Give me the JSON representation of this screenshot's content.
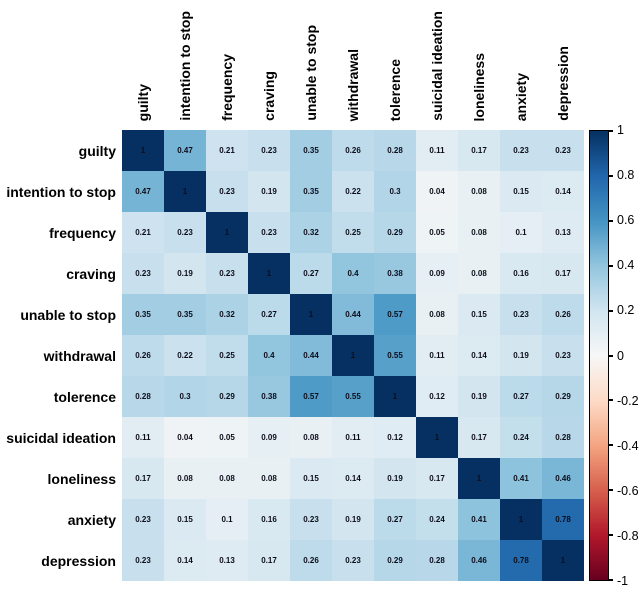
{
  "figure": {
    "type": "correlation-heatmap",
    "background": "#ffffff",
    "label_color": "#000000",
    "cell_text_color": "#0d0d1a"
  },
  "chart_data": {
    "type": "heatmap",
    "title": "",
    "xlabel": "",
    "ylabel": "",
    "legend_position": "right-colorbar",
    "grid": false,
    "variables": [
      "guilty",
      "intention to stop",
      "frequency",
      "craving",
      "unable to stop",
      "withdrawal",
      "tolerence",
      "suicidal ideation",
      "loneliness",
      "anxiety",
      "depression"
    ],
    "matrix": [
      [
        1,
        0.47,
        0.21,
        0.23,
        0.35,
        0.26,
        0.28,
        0.11,
        0.17,
        0.23,
        0.23
      ],
      [
        0.47,
        1,
        0.23,
        0.19,
        0.35,
        0.22,
        0.3,
        0.04,
        0.08,
        0.15,
        0.14
      ],
      [
        0.21,
        0.23,
        1,
        0.23,
        0.32,
        0.25,
        0.29,
        0.05,
        0.08,
        0.1,
        0.13
      ],
      [
        0.23,
        0.19,
        0.23,
        1,
        0.27,
        0.4,
        0.38,
        0.09,
        0.08,
        0.16,
        0.17
      ],
      [
        0.35,
        0.35,
        0.32,
        0.27,
        1,
        0.44,
        0.57,
        0.08,
        0.15,
        0.23,
        0.26
      ],
      [
        0.26,
        0.22,
        0.25,
        0.4,
        0.44,
        1,
        0.55,
        0.11,
        0.14,
        0.19,
        0.23
      ],
      [
        0.28,
        0.3,
        0.29,
        0.38,
        0.57,
        0.55,
        1,
        0.12,
        0.19,
        0.27,
        0.29
      ],
      [
        0.11,
        0.04,
        0.05,
        0.09,
        0.08,
        0.11,
        0.12,
        1,
        0.17,
        0.24,
        0.28
      ],
      [
        0.17,
        0.08,
        0.08,
        0.08,
        0.15,
        0.14,
        0.19,
        0.17,
        1,
        0.41,
        0.46
      ],
      [
        0.23,
        0.15,
        0.1,
        0.16,
        0.23,
        0.19,
        0.27,
        0.24,
        0.41,
        1,
        0.78
      ],
      [
        0.23,
        0.14,
        0.13,
        0.17,
        0.26,
        0.23,
        0.29,
        0.28,
        0.46,
        0.78,
        1
      ]
    ],
    "colormap": {
      "name": "RdBu",
      "domain": [
        -1,
        1
      ],
      "anchors": [
        {
          "value": -1.0,
          "color": "#67001f"
        },
        {
          "value": -0.8,
          "color": "#b2182b"
        },
        {
          "value": -0.6,
          "color": "#d6604d"
        },
        {
          "value": -0.4,
          "color": "#f4a582"
        },
        {
          "value": -0.2,
          "color": "#fddbc7"
        },
        {
          "value": 0.0,
          "color": "#f7f7f7"
        },
        {
          "value": 0.2,
          "color": "#d1e5f0"
        },
        {
          "value": 0.4,
          "color": "#92c5de"
        },
        {
          "value": 0.6,
          "color": "#4393c3"
        },
        {
          "value": 0.8,
          "color": "#2166ac"
        },
        {
          "value": 1.0,
          "color": "#053061"
        }
      ]
    },
    "colorbar": {
      "position": "right",
      "tick_labels": [
        "1",
        "0.8",
        "0.6",
        "0.4",
        "0.2",
        "0",
        "-0.2",
        "-0.4",
        "-0.6",
        "-0.8",
        "-1"
      ],
      "tick_values": [
        1,
        0.8,
        0.6,
        0.4,
        0.2,
        0,
        -0.2,
        -0.4,
        -0.6,
        -0.8,
        -1
      ]
    }
  }
}
